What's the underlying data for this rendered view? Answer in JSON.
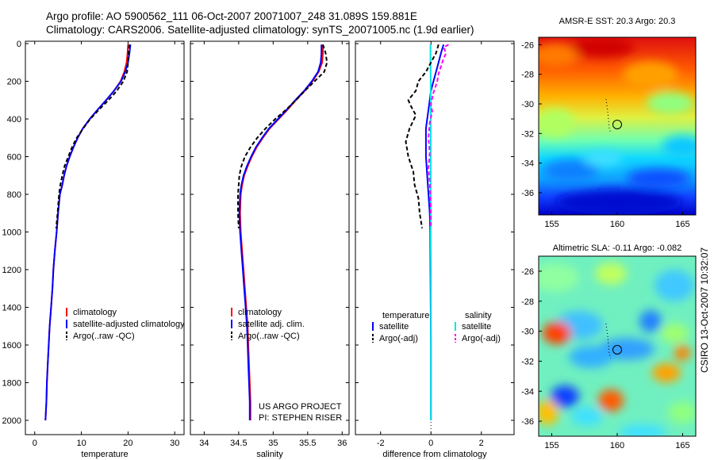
{
  "header": {
    "line1": "Argo profile: AO 5900562_111 06-Oct-2007 20071007_248 31.089S 159.881E",
    "line2": "Climatology: CARS2006. Satellite-adjusted climatology: synTS_20071005.nc (1.9d earlier)"
  },
  "colors": {
    "climatology": "#ff0000",
    "satellite": "#0000ff",
    "argo": "#000000",
    "sat_diff": "#00e5e5",
    "argo_sal_diff": "#ff00ff"
  },
  "chart_data": [
    {
      "type": "line",
      "name": "temperature",
      "xlabel": "temperature",
      "xlim": [
        -2,
        32
      ],
      "ylim": [
        2050,
        0
      ],
      "xticks": [
        0,
        10,
        20,
        30
      ],
      "yticks": [
        0,
        200,
        400,
        600,
        800,
        1000,
        1200,
        1400,
        1600,
        1800,
        2000
      ],
      "series": [
        {
          "name": "climatology",
          "color": "#ff0000",
          "dash": "",
          "points": [
            [
              20.0,
              5
            ],
            [
              19.9,
              50
            ],
            [
              19.7,
              100
            ],
            [
              19.2,
              150
            ],
            [
              18.4,
              200
            ],
            [
              17.0,
              250
            ],
            [
              15.3,
              300
            ],
            [
              13.5,
              350
            ],
            [
              11.8,
              400
            ],
            [
              10.3,
              450
            ],
            [
              9.2,
              500
            ],
            [
              8.3,
              550
            ],
            [
              7.5,
              600
            ],
            [
              6.8,
              650
            ],
            [
              6.3,
              700
            ],
            [
              5.9,
              750
            ],
            [
              5.4,
              800
            ],
            [
              5.0,
              900
            ],
            [
              4.7,
              1000
            ],
            [
              4.3,
              1100
            ],
            [
              4.0,
              1200
            ],
            [
              3.8,
              1300
            ],
            [
              3.5,
              1400
            ],
            [
              3.2,
              1500
            ],
            [
              3.0,
              1600
            ],
            [
              2.8,
              1700
            ],
            [
              2.6,
              1800
            ],
            [
              2.5,
              1900
            ],
            [
              2.3,
              2000
            ]
          ]
        },
        {
          "name": "satellite-adjusted climatology",
          "color": "#0000ff",
          "dash": "",
          "points": [
            [
              20.5,
              5
            ],
            [
              20.3,
              50
            ],
            [
              20.0,
              100
            ],
            [
              19.4,
              150
            ],
            [
              18.5,
              200
            ],
            [
              17.0,
              250
            ],
            [
              15.3,
              300
            ],
            [
              13.5,
              350
            ],
            [
              11.8,
              400
            ],
            [
              10.3,
              450
            ],
            [
              9.2,
              500
            ],
            [
              8.3,
              550
            ],
            [
              7.5,
              600
            ],
            [
              6.8,
              650
            ],
            [
              6.3,
              700
            ],
            [
              5.9,
              750
            ],
            [
              5.4,
              800
            ],
            [
              5.0,
              900
            ],
            [
              4.7,
              1000
            ],
            [
              4.3,
              1100
            ],
            [
              4.0,
              1200
            ],
            [
              3.8,
              1300
            ],
            [
              3.5,
              1400
            ],
            [
              3.2,
              1500
            ],
            [
              3.0,
              1600
            ],
            [
              2.8,
              1700
            ],
            [
              2.6,
              1800
            ],
            [
              2.5,
              1900
            ],
            [
              2.3,
              2000
            ]
          ]
        },
        {
          "name": "Argo(..raw -QC)",
          "color": "#000000",
          "dash": "5,3",
          "points": [
            [
              20.3,
              5
            ],
            [
              20.1,
              50
            ],
            [
              20.0,
              100
            ],
            [
              19.8,
              150
            ],
            [
              19.0,
              200
            ],
            [
              17.6,
              250
            ],
            [
              15.8,
              300
            ],
            [
              13.8,
              350
            ],
            [
              11.9,
              400
            ],
            [
              10.4,
              450
            ],
            [
              9.0,
              500
            ],
            [
              8.0,
              550
            ],
            [
              7.2,
              600
            ],
            [
              6.4,
              650
            ],
            [
              5.9,
              700
            ],
            [
              5.5,
              750
            ],
            [
              5.2,
              800
            ],
            [
              4.9,
              900
            ],
            [
              4.6,
              980
            ]
          ]
        }
      ],
      "legend": [
        "climatology",
        "satellite-adjusted climatology",
        "Argo(..raw -QC)"
      ]
    },
    {
      "type": "line",
      "name": "salinity",
      "xlabel": "salinity",
      "xlim": [
        33.8,
        36.1
      ],
      "ylim": [
        2050,
        0
      ],
      "xticks": [
        34,
        34.5,
        35,
        35.5,
        36
      ],
      "xticklabels": [
        "34",
        "34.5",
        "35",
        "35.5",
        "36"
      ],
      "series": [
        {
          "name": "climatology",
          "color": "#ff0000",
          "dash": "",
          "points": [
            [
              35.72,
              5
            ],
            [
              35.72,
              50
            ],
            [
              35.71,
              100
            ],
            [
              35.66,
              150
            ],
            [
              35.57,
              200
            ],
            [
              35.46,
              250
            ],
            [
              35.33,
              300
            ],
            [
              35.21,
              350
            ],
            [
              35.08,
              400
            ],
            [
              34.95,
              450
            ],
            [
              34.85,
              500
            ],
            [
              34.76,
              550
            ],
            [
              34.69,
              600
            ],
            [
              34.63,
              650
            ],
            [
              34.58,
              700
            ],
            [
              34.55,
              750
            ],
            [
              34.53,
              800
            ],
            [
              34.52,
              900
            ],
            [
              34.53,
              1000
            ],
            [
              34.55,
              1100
            ],
            [
              34.57,
              1200
            ],
            [
              34.59,
              1300
            ],
            [
              34.61,
              1400
            ],
            [
              34.63,
              1500
            ],
            [
              34.64,
              1600
            ],
            [
              34.65,
              1700
            ],
            [
              34.66,
              1800
            ],
            [
              34.67,
              1900
            ],
            [
              34.67,
              2000
            ]
          ]
        },
        {
          "name": "satellite adj. clim.",
          "color": "#0000ff",
          "dash": "",
          "points": [
            [
              35.7,
              5
            ],
            [
              35.7,
              50
            ],
            [
              35.69,
              100
            ],
            [
              35.65,
              150
            ],
            [
              35.56,
              200
            ],
            [
              35.45,
              250
            ],
            [
              35.32,
              300
            ],
            [
              35.2,
              350
            ],
            [
              35.07,
              400
            ],
            [
              34.94,
              450
            ],
            [
              34.84,
              500
            ],
            [
              34.75,
              550
            ],
            [
              34.68,
              600
            ],
            [
              34.62,
              650
            ],
            [
              34.57,
              700
            ],
            [
              34.54,
              750
            ],
            [
              34.52,
              800
            ],
            [
              34.51,
              900
            ],
            [
              34.52,
              1000
            ],
            [
              34.54,
              1100
            ],
            [
              34.56,
              1200
            ],
            [
              34.58,
              1300
            ],
            [
              34.6,
              1400
            ],
            [
              34.62,
              1500
            ],
            [
              34.63,
              1600
            ],
            [
              34.64,
              1700
            ],
            [
              34.65,
              1800
            ],
            [
              34.66,
              1900
            ],
            [
              34.66,
              2000
            ]
          ]
        },
        {
          "name": "Argo(..raw -QC)",
          "color": "#000000",
          "dash": "5,3",
          "points": [
            [
              35.72,
              5
            ],
            [
              35.76,
              50
            ],
            [
              35.78,
              100
            ],
            [
              35.74,
              150
            ],
            [
              35.6,
              200
            ],
            [
              35.46,
              250
            ],
            [
              35.33,
              300
            ],
            [
              35.19,
              350
            ],
            [
              35.03,
              400
            ],
            [
              34.89,
              450
            ],
            [
              34.77,
              500
            ],
            [
              34.67,
              550
            ],
            [
              34.59,
              600
            ],
            [
              34.54,
              650
            ],
            [
              34.51,
              700
            ],
            [
              34.5,
              750
            ],
            [
              34.49,
              800
            ],
            [
              34.49,
              900
            ],
            [
              34.5,
              980
            ]
          ]
        }
      ],
      "legend": [
        "climatology",
        "satellite adj. clim.",
        "Argo(..raw -QC)"
      ],
      "annotations": [
        "US ARGO PROJECT",
        "PI: STEPHEN RISER"
      ]
    },
    {
      "type": "line",
      "name": "difference",
      "xlabel": "difference from climatology",
      "xlim": [
        -3,
        3.3
      ],
      "ylim": [
        2050,
        0
      ],
      "xticks": [
        -2,
        0,
        2
      ],
      "series": [
        {
          "name": "temperature satellite",
          "color": "#0000ff",
          "dash": "",
          "points": [
            [
              0.5,
              5
            ],
            [
              0.4,
              50
            ],
            [
              0.3,
              100
            ],
            [
              0.2,
              150
            ],
            [
              0.1,
              200
            ],
            [
              0.0,
              250
            ],
            [
              -0.05,
              300
            ],
            [
              -0.1,
              350
            ],
            [
              -0.15,
              400
            ],
            [
              -0.2,
              450
            ],
            [
              -0.2,
              500
            ],
            [
              -0.2,
              600
            ],
            [
              -0.15,
              700
            ],
            [
              -0.1,
              800
            ],
            [
              -0.05,
              900
            ],
            [
              -0.03,
              1000
            ],
            [
              -0.02,
              1200
            ],
            [
              -0.01,
              1400
            ],
            [
              0.0,
              1600
            ],
            [
              0.0,
              1800
            ],
            [
              0.0,
              2000
            ]
          ]
        },
        {
          "name": "salinity satellite",
          "color": "#00e5e5",
          "dash": "",
          "points": [
            [
              -0.02,
              5
            ],
            [
              -0.02,
              100
            ],
            [
              -0.01,
              200
            ],
            [
              -0.01,
              300
            ],
            [
              -0.01,
              500
            ],
            [
              -0.01,
              700
            ],
            [
              -0.01,
              900
            ],
            [
              -0.01,
              1000
            ],
            [
              0.0,
              1200
            ],
            [
              0.0,
              1400
            ],
            [
              0.0,
              1600
            ],
            [
              0.0,
              1800
            ],
            [
              0.0,
              2000
            ]
          ]
        },
        {
          "name": "temperature Argo(-adj)",
          "color": "#000000",
          "dash": "5,3",
          "points": [
            [
              0.3,
              5
            ],
            [
              0.2,
              50
            ],
            [
              0.0,
              100
            ],
            [
              -0.2,
              150
            ],
            [
              -0.5,
              200
            ],
            [
              -0.6,
              250
            ],
            [
              -0.9,
              300
            ],
            [
              -0.8,
              330
            ],
            [
              -0.6,
              380
            ],
            [
              -0.85,
              450
            ],
            [
              -1.0,
              520
            ],
            [
              -0.9,
              600
            ],
            [
              -0.7,
              680
            ],
            [
              -0.65,
              750
            ],
            [
              -0.5,
              820
            ],
            [
              -0.45,
              900
            ],
            [
              -0.35,
              980
            ]
          ]
        },
        {
          "name": "salinity Argo(-adj)",
          "color": "#ff00ff",
          "dash": "5,3",
          "points": [
            [
              0.7,
              5
            ],
            [
              0.5,
              20
            ],
            [
              0.6,
              50
            ],
            [
              0.5,
              80
            ],
            [
              0.4,
              120
            ],
            [
              0.3,
              160
            ],
            [
              0.25,
              200
            ],
            [
              0.1,
              260
            ],
            [
              0.0,
              320
            ],
            [
              0.05,
              360
            ],
            [
              -0.05,
              420
            ],
            [
              -0.1,
              500
            ],
            [
              -0.05,
              580
            ],
            [
              -0.1,
              660
            ],
            [
              -0.05,
              740
            ],
            [
              -0.02,
              820
            ],
            [
              0.0,
              900
            ],
            [
              0.0,
              980
            ]
          ]
        }
      ],
      "legend_headers": [
        "temperature",
        "salinity"
      ],
      "legend": [
        "satellite",
        "Argo(-adj)",
        "satellite",
        "Argo(-adj)"
      ]
    }
  ],
  "maps": [
    {
      "type": "heatmap",
      "title": "AMSR-E SST: 20.3 Argo: 20.3",
      "xlim": [
        154,
        166
      ],
      "ylim": [
        -37.5,
        -25.5
      ],
      "xticks": [
        155,
        160,
        165
      ],
      "yticks": [
        -26,
        -28,
        -30,
        -32,
        -34,
        -36
      ],
      "profile_location": [
        159.881,
        -31.089
      ]
    },
    {
      "type": "heatmap",
      "title": "Altimetric SLA: -0.11 Argo: -0.082",
      "xlim": [
        154,
        166
      ],
      "ylim": [
        -37,
        -25
      ],
      "xticks": [
        155,
        160,
        165
      ],
      "yticks": [
        -26,
        -28,
        -30,
        -32,
        -34,
        -36
      ],
      "profile_location": [
        159.881,
        -31.089
      ]
    }
  ],
  "side_stamp": "CSIRO 13-Oct-2007 10:32:07"
}
